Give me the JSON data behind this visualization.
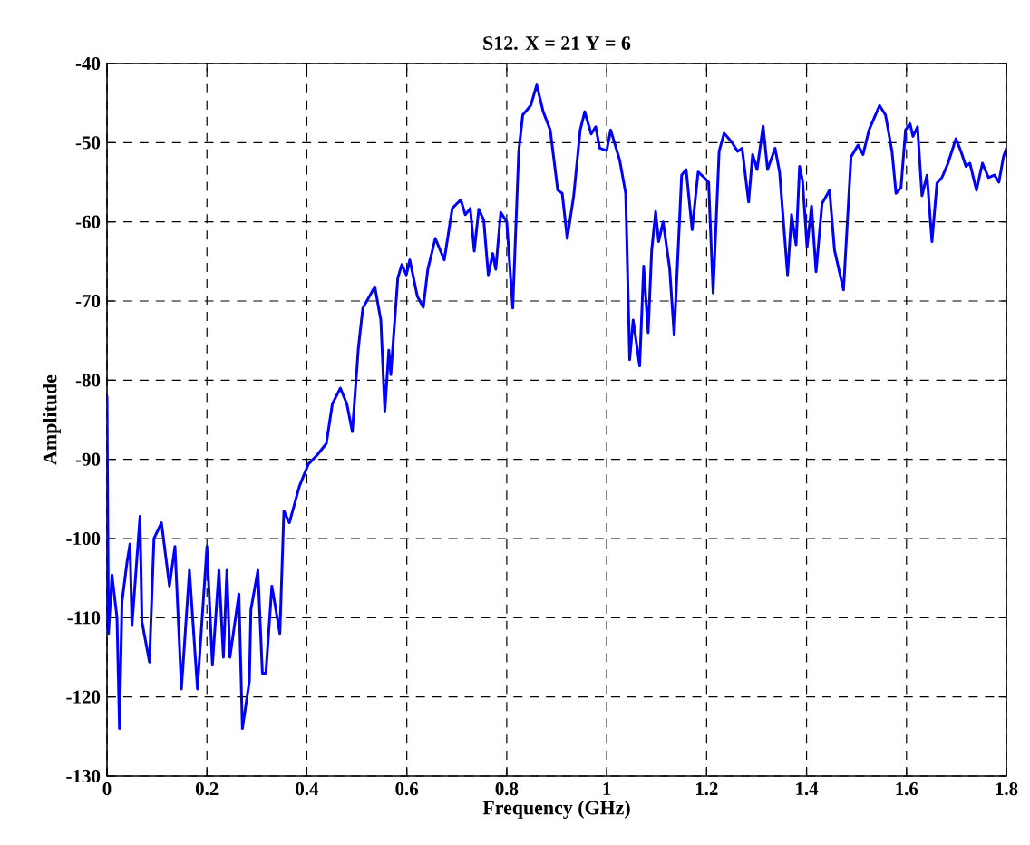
{
  "chart_data": {
    "type": "line",
    "title": "S12.  X = 21 Y = 6",
    "xlabel": "Frequency (GHz)",
    "ylabel": "Amplitude",
    "xlim": [
      0,
      1.8
    ],
    "ylim": [
      -130,
      -40
    ],
    "xticks": [
      0,
      0.2,
      0.4,
      0.6,
      0.8,
      1,
      1.2,
      1.4,
      1.6,
      1.8
    ],
    "yticks": [
      -130,
      -120,
      -110,
      -100,
      -90,
      -80,
      -70,
      -60,
      -50,
      -40
    ],
    "grid": true,
    "line_style": "solid",
    "marker": "none",
    "series": [
      {
        "color": "#0000ff",
        "x": [
          0,
          0.003,
          0.01,
          0.02,
          0.025,
          0.03,
          0.04,
          0.046,
          0.05,
          0.066,
          0.07,
          0.085,
          0.094,
          0.109,
          0.125,
          0.136,
          0.149,
          0.165,
          0.181,
          0.2,
          0.211,
          0.224,
          0.233,
          0.24,
          0.246,
          0.264,
          0.271,
          0.285,
          0.288,
          0.302,
          0.311,
          0.318,
          0.33,
          0.346,
          0.354,
          0.365,
          0.385,
          0.403,
          0.42,
          0.439,
          0.451,
          0.467,
          0.48,
          0.491,
          0.503,
          0.512,
          0.536,
          0.548,
          0.556,
          0.564,
          0.568,
          0.582,
          0.59,
          0.599,
          0.606,
          0.621,
          0.633,
          0.642,
          0.657,
          0.675,
          0.691,
          0.708,
          0.717,
          0.727,
          0.735,
          0.744,
          0.754,
          0.763,
          0.772,
          0.778,
          0.788,
          0.8,
          0.812,
          0.824,
          0.832,
          0.848,
          0.86,
          0.873,
          0.887,
          0.902,
          0.911,
          0.921,
          0.934,
          0.947,
          0.956,
          0.969,
          0.978,
          0.986,
          1.0,
          1.008,
          1.026,
          1.038,
          1.046,
          1.053,
          1.066,
          1.074,
          1.083,
          1.09,
          1.098,
          1.104,
          1.113,
          1.126,
          1.135,
          1.15,
          1.159,
          1.171,
          1.183,
          1.195,
          1.204,
          1.213,
          1.225,
          1.235,
          1.25,
          1.262,
          1.271,
          1.284,
          1.292,
          1.301,
          1.313,
          1.322,
          1.337,
          1.346,
          1.362,
          1.37,
          1.379,
          1.386,
          1.392,
          1.401,
          1.41,
          1.419,
          1.431,
          1.446,
          1.456,
          1.474,
          1.489,
          1.503,
          1.513,
          1.525,
          1.546,
          1.558,
          1.571,
          1.579,
          1.589,
          1.598,
          1.607,
          1.613,
          1.622,
          1.631,
          1.641,
          1.651,
          1.661,
          1.671,
          1.683,
          1.699,
          1.709,
          1.719,
          1.727,
          1.74,
          1.752,
          1.764,
          1.776,
          1.785,
          1.794,
          1.8
        ],
        "values": [
          -82,
          -112,
          -104.6,
          -110,
          -124,
          -108,
          -103,
          -100.7,
          -111,
          -97.2,
          -110.5,
          -115.6,
          -100,
          -98,
          -106,
          -101,
          -119,
          -104,
          -119,
          -101,
          -116,
          -104,
          -115,
          -104,
          -115,
          -107,
          -124,
          -118,
          -109,
          -104,
          -117,
          -117,
          -106,
          -112,
          -96.5,
          -98,
          -93.4,
          -90.6,
          -89.5,
          -88,
          -83,
          -81,
          -83,
          -86.5,
          -76,
          -70.9,
          -68.2,
          -72.4,
          -83.9,
          -76.2,
          -79.3,
          -67.1,
          -65.4,
          -66.7,
          -64.8,
          -69.4,
          -70.8,
          -66,
          -62.1,
          -64.8,
          -58.3,
          -57.2,
          -59.1,
          -58.3,
          -63.7,
          -58.4,
          -59.8,
          -66.7,
          -64,
          -66,
          -58.8,
          -60,
          -70.9,
          -51.1,
          -46.5,
          -45.3,
          -42.7,
          -46.1,
          -48.4,
          -56,
          -56.4,
          -62.1,
          -56.7,
          -48.4,
          -46.1,
          -48.9,
          -48,
          -50.7,
          -51,
          -48.4,
          -52.2,
          -56.4,
          -77.4,
          -72.4,
          -78.2,
          -65.6,
          -74,
          -63.6,
          -58.7,
          -62.5,
          -60,
          -65.9,
          -74.3,
          -54.1,
          -53.4,
          -61,
          -53.7,
          -54.4,
          -55,
          -69,
          -51.1,
          -48.8,
          -49.9,
          -51.1,
          -50.7,
          -57.5,
          -51.5,
          -53.4,
          -47.9,
          -53.4,
          -50.7,
          -53.7,
          -66.7,
          -59.1,
          -62.9,
          -53,
          -54.8,
          -63.2,
          -58,
          -66.3,
          -57.7,
          -56,
          -63.6,
          -68.6,
          -51.8,
          -50.3,
          -51.5,
          -48.4,
          -45.3,
          -46.5,
          -51.1,
          -56.4,
          -55.7,
          -48.4,
          -47.6,
          -49.2,
          -48,
          -56.7,
          -54.1,
          -62.5,
          -55.1,
          -54.4,
          -52.6,
          -49.5,
          -51.1,
          -53,
          -52.6,
          -56,
          -52.6,
          -54.4,
          -54.1,
          -55,
          -51.8,
          -50.7
        ]
      }
    ]
  }
}
